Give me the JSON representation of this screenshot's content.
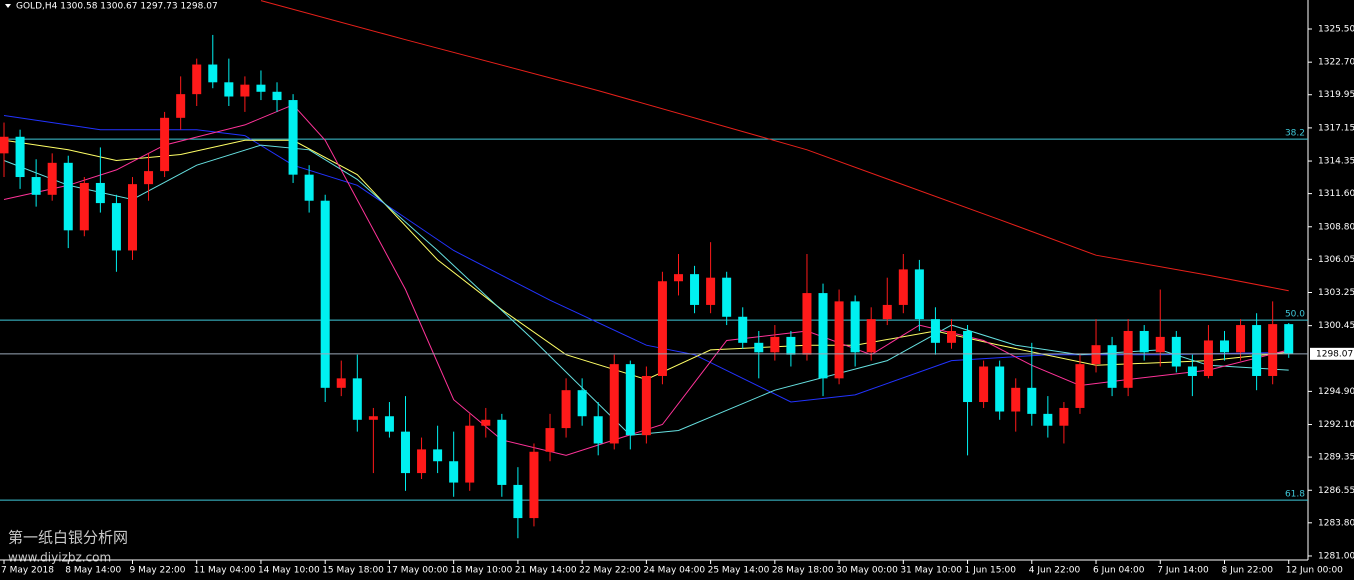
{
  "chart_data": {
    "type": "candlestick",
    "title": "GOLD,H4  1300.58 1300.67 1297.73 1298.07",
    "watermark": "第一纸白银分析网",
    "watermark_url": "www.diyizbz.com",
    "up_color": "#ff1a1a",
    "down_color": "#00f0f0",
    "ylim": [
      1280.66,
      1327.95
    ],
    "yticks": [
      {
        "value": 1325.5,
        "label": "1325.50"
      },
      {
        "value": 1322.7,
        "label": "1322.70"
      },
      1319.95,
      1317.15,
      1314.35,
      {
        "value": 1311.6,
        "label": "1311.60"
      },
      {
        "value": 1308.8,
        "label": "1308.80"
      },
      1306.05,
      1303.25,
      1300.45,
      {
        "value": 1294.9,
        "label": "1294.90"
      },
      {
        "value": 1292.1,
        "label": "1292.10"
      },
      1289.35,
      1286.55,
      {
        "value": 1283.8,
        "label": "1283.80"
      },
      {
        "value": 1281,
        "label": "1281.00"
      }
    ],
    "xlim": [
      -0.25,
      81.2
    ],
    "xticks": [
      {
        "value": 0,
        "label": "7 May 2018"
      },
      {
        "value": 4,
        "label": "8 May 14:00"
      },
      {
        "value": 8,
        "label": "9 May 22:00"
      },
      {
        "value": 12,
        "label": "11 May 04:00"
      },
      {
        "value": 16,
        "label": "14 May 10:00"
      },
      {
        "value": 20,
        "label": "15 May 18:00"
      },
      {
        "value": 24,
        "label": "17 May 00:00"
      },
      {
        "value": 28,
        "label": "18 May 10:00"
      },
      {
        "value": 32,
        "label": "21 May 14:00"
      },
      {
        "value": 36,
        "label": "22 May 22:00"
      },
      {
        "value": 40,
        "label": "24 May 04:00"
      },
      {
        "value": 44,
        "label": "25 May 14:00"
      },
      {
        "value": 48,
        "label": "28 May 18:00"
      },
      {
        "value": 52,
        "label": "30 May 00:00"
      },
      {
        "value": 56,
        "label": "31 May 10:00"
      },
      {
        "value": 60,
        "label": "1 Jun 15:00"
      },
      {
        "value": 64,
        "label": "4 Jun 22:00"
      },
      {
        "value": 68,
        "label": "6 Jun 04:00"
      },
      {
        "value": 72,
        "label": "7 Jun 14:00"
      },
      {
        "value": 76,
        "label": "8 Jun 22:00"
      },
      {
        "value": 80,
        "label": "12 Jun 00:00"
      }
    ],
    "candles": [
      [
        1315.0,
        1317.6,
        1313.0,
        1316.4
      ],
      [
        1316.4,
        1317.0,
        1312.0,
        1313.0
      ],
      [
        1313.0,
        1314.5,
        1310.5,
        1311.5
      ],
      [
        1311.5,
        1315.0,
        1311.0,
        1314.2
      ],
      [
        1314.2,
        1314.8,
        1307.0,
        1308.5
      ],
      [
        1308.5,
        1313.0,
        1308.0,
        1312.5
      ],
      [
        1312.5,
        1315.5,
        1310.0,
        1310.8
      ],
      [
        1310.8,
        1311.5,
        1305.0,
        1306.8
      ],
      [
        1306.8,
        1313.0,
        1306.0,
        1312.4
      ],
      [
        1312.4,
        1315.0,
        1311.0,
        1313.5
      ],
      [
        1313.5,
        1318.5,
        1313.0,
        1318.0
      ],
      [
        1318.0,
        1321.5,
        1317.0,
        1320.0
      ],
      [
        1320.0,
        1323.0,
        1319.0,
        1322.5
      ],
      [
        1322.5,
        1325.0,
        1320.5,
        1321.0
      ],
      [
        1321.0,
        1323.0,
        1319.0,
        1319.8
      ],
      [
        1319.8,
        1321.5,
        1318.5,
        1320.8
      ],
      [
        1320.8,
        1322.0,
        1319.5,
        1320.2
      ],
      [
        1320.2,
        1321.0,
        1318.5,
        1319.5
      ],
      [
        1319.5,
        1320.0,
        1312.5,
        1313.2
      ],
      [
        1313.2,
        1314.0,
        1310.0,
        1311.0
      ],
      [
        1311.0,
        1311.5,
        1294.0,
        1295.2
      ],
      [
        1295.2,
        1297.5,
        1294.5,
        1296.0
      ],
      [
        1296.0,
        1298.0,
        1291.5,
        1292.5
      ],
      [
        1292.5,
        1293.5,
        1288.0,
        1292.8
      ],
      [
        1292.8,
        1294.0,
        1291.0,
        1291.5
      ],
      [
        1291.5,
        1294.5,
        1286.5,
        1288.0
      ],
      [
        1288.0,
        1291.0,
        1287.5,
        1290.0
      ],
      [
        1290.0,
        1292.0,
        1288.0,
        1289.0
      ],
      [
        1289.0,
        1291.5,
        1286.0,
        1287.2
      ],
      [
        1287.2,
        1293.0,
        1286.5,
        1292.0
      ],
      [
        1292.0,
        1293.5,
        1291.0,
        1292.5
      ],
      [
        1292.5,
        1293.0,
        1286.0,
        1287.0
      ],
      [
        1287.0,
        1288.5,
        1282.5,
        1284.2
      ],
      [
        1284.2,
        1290.5,
        1283.5,
        1289.8
      ],
      [
        1289.8,
        1293.0,
        1289.0,
        1291.8
      ],
      [
        1291.8,
        1296.0,
        1291.0,
        1295.0
      ],
      [
        1295.0,
        1296.0,
        1292.0,
        1292.8
      ],
      [
        1292.8,
        1294.0,
        1289.5,
        1290.5
      ],
      [
        1290.5,
        1298.0,
        1290.0,
        1297.2
      ],
      [
        1297.2,
        1297.5,
        1290.0,
        1291.2
      ],
      [
        1291.2,
        1297.0,
        1290.5,
        1296.2
      ],
      [
        1296.2,
        1305.0,
        1295.5,
        1304.2
      ],
      [
        1304.2,
        1306.5,
        1303.0,
        1304.8
      ],
      [
        1304.8,
        1305.5,
        1301.5,
        1302.2
      ],
      [
        1302.2,
        1307.5,
        1301.5,
        1304.5
      ],
      [
        1304.5,
        1305.0,
        1300.5,
        1301.2
      ],
      [
        1301.2,
        1302.0,
        1298.5,
        1299.0
      ],
      [
        1299.0,
        1300.0,
        1296.0,
        1298.2
      ],
      [
        1298.2,
        1300.5,
        1297.5,
        1299.5
      ],
      [
        1299.5,
        1300.0,
        1297.0,
        1298.0
      ],
      [
        1298.0,
        1306.5,
        1297.5,
        1303.2
      ],
      [
        1303.2,
        1304.0,
        1294.5,
        1296.0
      ],
      [
        1296.0,
        1303.5,
        1295.5,
        1302.5
      ],
      [
        1302.5,
        1303.0,
        1297.0,
        1298.2
      ],
      [
        1298.2,
        1302.0,
        1297.5,
        1301.0
      ],
      [
        1301.0,
        1304.5,
        1300.5,
        1302.2
      ],
      [
        1302.2,
        1306.5,
        1301.5,
        1305.2
      ],
      [
        1305.2,
        1306.0,
        1300.0,
        1301.0
      ],
      [
        1301.0,
        1302.0,
        1298.0,
        1299.0
      ],
      [
        1299.0,
        1301.0,
        1298.5,
        1300.0
      ],
      [
        1300.0,
        1300.5,
        1289.5,
        1294.0
      ],
      [
        1294.0,
        1297.5,
        1293.5,
        1297.0
      ],
      [
        1297.0,
        1297.5,
        1292.5,
        1293.2
      ],
      [
        1293.2,
        1296.0,
        1291.5,
        1295.2
      ],
      [
        1295.2,
        1299.0,
        1292.0,
        1293.0
      ],
      [
        1293.0,
        1294.5,
        1291.0,
        1292.0
      ],
      [
        1292.0,
        1294.0,
        1290.5,
        1293.5
      ],
      [
        1293.5,
        1298.0,
        1293.0,
        1297.2
      ],
      [
        1297.2,
        1301.0,
        1296.5,
        1298.8
      ],
      [
        1298.8,
        1299.5,
        1294.5,
        1295.2
      ],
      [
        1295.2,
        1301.0,
        1294.5,
        1300.0
      ],
      [
        1300.0,
        1300.5,
        1297.5,
        1298.2
      ],
      [
        1298.2,
        1303.5,
        1297.0,
        1299.5
      ],
      [
        1299.5,
        1300.0,
        1296.5,
        1297.0
      ],
      [
        1297.0,
        1298.0,
        1294.5,
        1296.2
      ],
      [
        1296.2,
        1300.5,
        1296.0,
        1299.2
      ],
      [
        1299.2,
        1300.0,
        1297.5,
        1298.2
      ],
      [
        1298.2,
        1301.0,
        1297.5,
        1300.5
      ],
      [
        1300.5,
        1301.5,
        1295.0,
        1296.2
      ],
      [
        1296.2,
        1302.5,
        1295.5,
        1300.58
      ],
      [
        1300.58,
        1300.67,
        1297.73,
        1298.07
      ]
    ],
    "series": [
      {
        "color": "#e8201a",
        "x": [
          16,
          25,
          37,
          50,
          62,
          68,
          75,
          80
        ],
        "values": [
          1327.9,
          1324.6,
          1320.3,
          1315.3,
          1309.4,
          1306.4,
          1304.7,
          1303.4
        ]
      },
      {
        "color": "#2233ff",
        "x": [
          0,
          6,
          12,
          15,
          18,
          22,
          28,
          34,
          40,
          43,
          49,
          53,
          59,
          65,
          72,
          80
        ],
        "values": [
          1318.2,
          1317.0,
          1317.0,
          1316.5,
          1314.0,
          1312.3,
          1306.8,
          1302.6,
          1298.8,
          1298.0,
          1294.0,
          1294.6,
          1297.5,
          1298.0,
          1298.0,
          1298.2
        ]
      },
      {
        "color": "#ffff66",
        "x": [
          0,
          4,
          7,
          11,
          15,
          18,
          22,
          27,
          31,
          35,
          40,
          44,
          50,
          53,
          58,
          62,
          68,
          75,
          80
        ],
        "values": [
          1316.1,
          1315.3,
          1314.4,
          1314.9,
          1316.1,
          1316.1,
          1313.2,
          1306.0,
          1301.8,
          1298.0,
          1295.9,
          1298.4,
          1298.8,
          1298.8,
          1300.0,
          1298.8,
          1297.1,
          1297.5,
          1298.2
        ]
      },
      {
        "color": "#66e0e0",
        "x": [
          0,
          4,
          8,
          12,
          16,
          19,
          22,
          27,
          33,
          39,
          42,
          48,
          55,
          59,
          63,
          67,
          72,
          75,
          80
        ],
        "values": [
          1314.4,
          1312.3,
          1311.1,
          1314.0,
          1315.7,
          1315.3,
          1312.8,
          1306.8,
          1299.2,
          1291.2,
          1291.6,
          1295.0,
          1297.5,
          1300.5,
          1298.8,
          1298.0,
          1298.4,
          1297.1,
          1296.7
        ]
      },
      {
        "color": "#ff3399",
        "x": [
          0,
          4,
          7,
          10,
          15,
          18,
          20,
          25,
          28,
          31,
          35,
          38,
          41,
          45,
          50,
          54,
          57,
          61,
          64,
          67,
          70,
          75,
          80
        ],
        "values": [
          1311.1,
          1312.3,
          1313.6,
          1315.7,
          1317.4,
          1319.1,
          1316.1,
          1303.5,
          1294.2,
          1290.8,
          1289.5,
          1290.8,
          1292.1,
          1299.2,
          1300.0,
          1298.0,
          1300.5,
          1299.2,
          1297.1,
          1295.4,
          1295.9,
          1296.7,
          1298.4
        ]
      }
    ],
    "fibo_color": "#3fc8d8",
    "fibo_levels": [
      {
        "label": "38.2",
        "price": 1316.2
      },
      {
        "label": "50.0",
        "price": 1300.92
      },
      {
        "label": "61.8",
        "price": 1285.72
      }
    ],
    "last_price": 1298.07
  }
}
